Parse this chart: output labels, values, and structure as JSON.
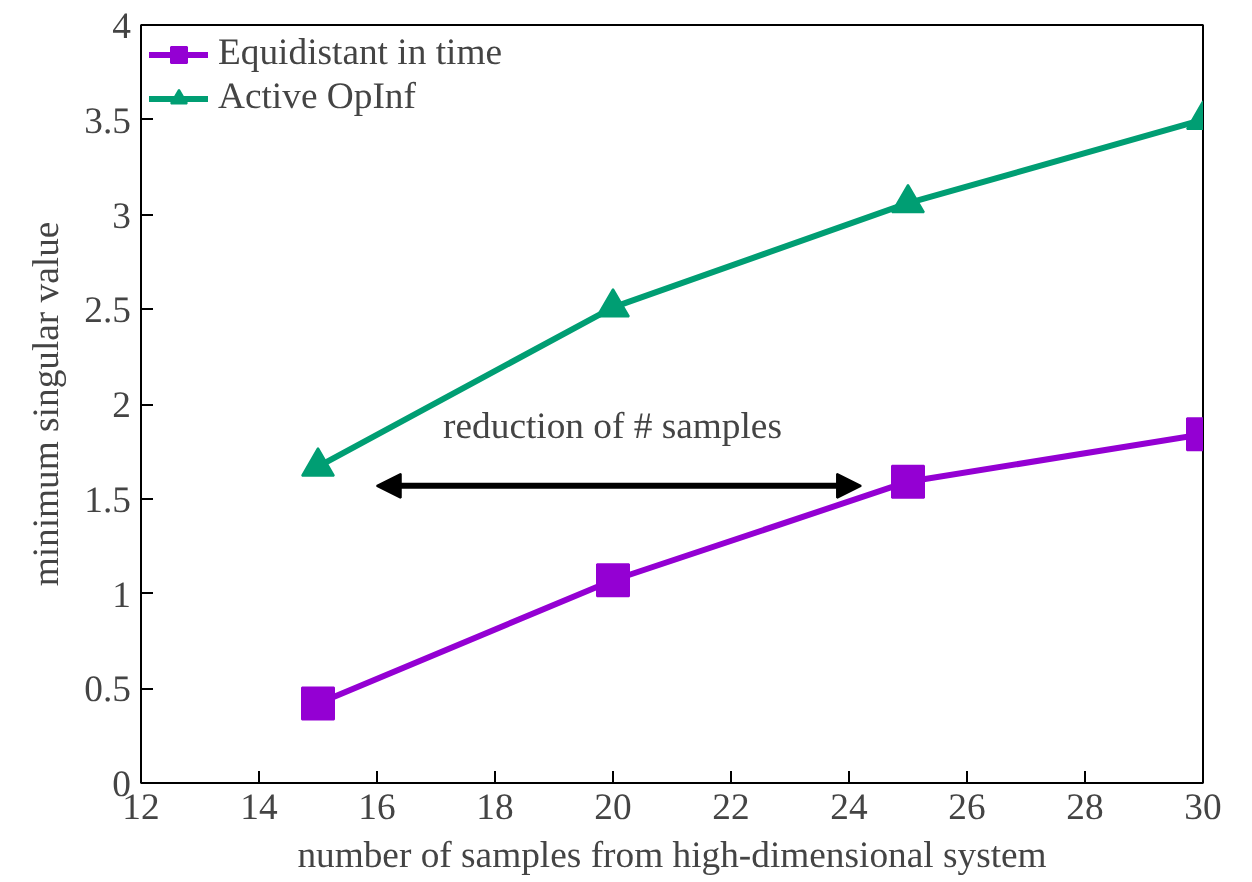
{
  "chart_data": {
    "type": "line",
    "xlabel": "number of samples from high-dimensional system",
    "ylabel": "minimum singular value",
    "x": [
      15,
      20,
      25,
      30
    ],
    "series": [
      {
        "name": "Equidistant in time",
        "color": "#9400d3",
        "values": [
          0.42,
          1.07,
          1.59,
          1.84
        ],
        "marker": "square"
      },
      {
        "name": "Active OpInf",
        "color": "#009e73",
        "values": [
          1.67,
          2.51,
          3.06,
          3.5
        ],
        "marker": "triangle"
      }
    ],
    "annotations": [
      "reduction of # samples"
    ],
    "xlim": [
      12,
      30
    ],
    "ylim": [
      0,
      4
    ],
    "xticks": [
      12,
      14,
      16,
      18,
      20,
      22,
      24,
      26,
      28,
      30
    ],
    "yticks": [
      0,
      0.5,
      1,
      1.5,
      2,
      2.5,
      3,
      3.5,
      4
    ],
    "grid": false,
    "legend": "top left",
    "line_style": "solid"
  }
}
